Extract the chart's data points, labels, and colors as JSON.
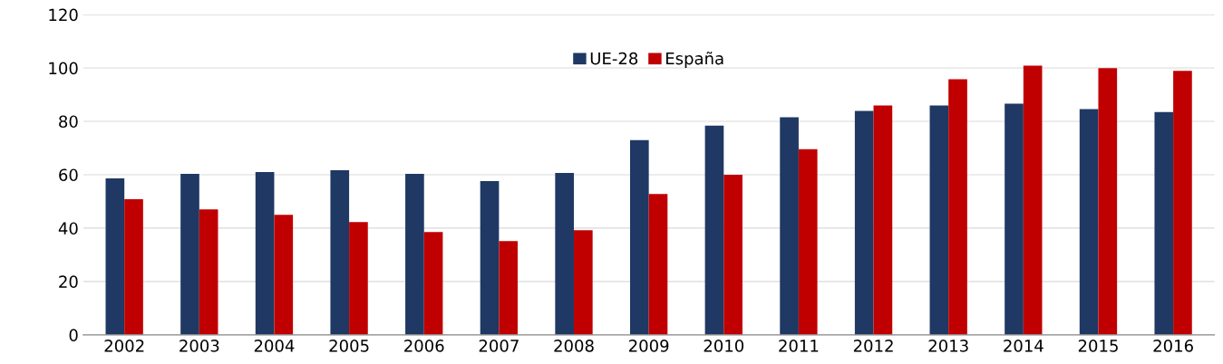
{
  "chart_data": {
    "type": "bar",
    "categories": [
      "2002",
      "2003",
      "2004",
      "2005",
      "2006",
      "2007",
      "2008",
      "2009",
      "2010",
      "2011",
      "2012",
      "2013",
      "2014",
      "2015",
      "2016"
    ],
    "series": [
      {
        "name": "UE-28",
        "color": "#1f3864",
        "values": [
          58.6,
          60.3,
          61.0,
          61.7,
          60.3,
          57.6,
          60.7,
          73.0,
          78.4,
          81.5,
          83.9,
          85.9,
          86.6,
          84.6,
          83.5
        ]
      },
      {
        "name": "España",
        "color": "#c00000",
        "values": [
          50.8,
          47.0,
          45.0,
          42.3,
          38.5,
          35.1,
          39.2,
          52.8,
          60.0,
          69.6,
          85.9,
          95.8,
          100.9,
          99.9,
          98.9
        ]
      }
    ],
    "ylim": [
      0,
      120
    ],
    "yticks": [
      0,
      20,
      40,
      60,
      80,
      100,
      120
    ],
    "grid": "y",
    "legend": "top"
  }
}
